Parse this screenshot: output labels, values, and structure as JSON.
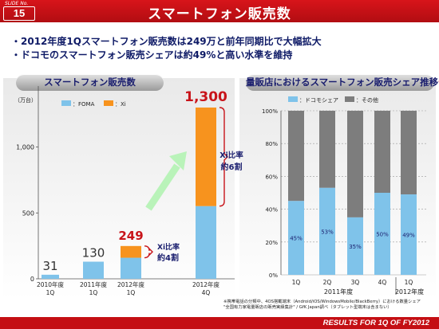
{
  "slide": {
    "label": "SLIDE No.",
    "number": "15"
  },
  "title": "スマートフォン販売数",
  "bullets": [
    "・2012年度1Qスマートフォン販売数は249万と前年同期比で大幅拡大",
    "・ドコモのスマートフォン販売シェアは約49%と高い水準を維持"
  ],
  "footer": "RESULTS FOR 1Q OF FY2012",
  "footnote": [
    "※携帯電話の分類中、4OS搭載端末（Android/iOS/WindowsMobile/BlackBerry）における数量シェア",
    "\"全国有力家電量販店の販売実績集計\" / GfK Japan調べ（タブレット型端末は含まない）"
  ],
  "colors": {
    "foma": "#7fc3ea",
    "xi": "#f7931e",
    "docomo": "#7fc3ea",
    "other": "#7d7d7d",
    "accent": "#c8141a"
  },
  "chart_data": [
    {
      "type": "bar",
      "title": "スマートフォン販売数",
      "unit": "（万台）",
      "legend": [
        "：FOMA",
        "：Xi"
      ],
      "categories": [
        "2010年度\n1Q",
        "2011年度\n1Q",
        "2012年度\n1Q",
        "2012年度\n4Q"
      ],
      "series": [
        {
          "name": "：FOMA",
          "values": [
            31,
            130,
            160,
            552
          ]
        },
        {
          "name": "：Xi",
          "values": [
            0,
            0,
            89,
            748
          ]
        }
      ],
      "totals": [
        "31",
        "130",
        "249",
        "1,300"
      ],
      "ylim": [
        0,
        1300
      ],
      "yticks": [
        "0",
        "500",
        "1,000"
      ],
      "annotations": [
        {
          "text": "Xi比率\n約4割"
        },
        {
          "text": "Xi比率\n約6割"
        }
      ]
    },
    {
      "type": "bar",
      "stacked": true,
      "title": "量販店におけるスマートフォン販売シェア推移",
      "title_mark": "※",
      "legend": [
        "：ドコモシェア",
        "：その他"
      ],
      "categories": [
        "1Q",
        "2Q",
        "3Q",
        "4Q",
        "1Q"
      ],
      "group_labels": [
        "2011年度",
        "2012年度"
      ],
      "series": [
        {
          "name": "：ドコモシェア",
          "values": [
            45,
            53,
            35,
            50,
            49
          ],
          "labels": [
            "45%",
            "53%",
            "35%",
            "50%",
            "49%"
          ]
        },
        {
          "name": "：その他",
          "values": [
            55,
            47,
            65,
            50,
            51
          ]
        }
      ],
      "ylim": [
        0,
        100
      ],
      "yticks": [
        "0%",
        "20%",
        "40%",
        "60%",
        "80%",
        "100%"
      ]
    }
  ]
}
